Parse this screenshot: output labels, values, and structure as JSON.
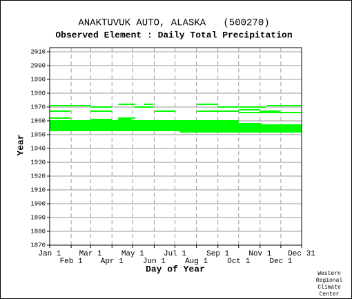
{
  "chart_data": {
    "type": "timeline",
    "title": "ANAKTUVUK AUTO, ALASKA   (500270)",
    "subtitle": "Observed Element : Daily Total Precipitation",
    "x_label": "Day of Year",
    "y_label": "Year",
    "credit": [
      "Western",
      "Regional",
      "Climate",
      "Center"
    ],
    "color": "#00ff00",
    "grid": true,
    "xlim": [
      1,
      365
    ],
    "ylim": [
      1870,
      2013
    ],
    "xticks": [
      {
        "value": 1,
        "label": "Jan 1"
      },
      {
        "value": 32,
        "label": "Feb 1"
      },
      {
        "value": 60,
        "label": "Mar 1"
      },
      {
        "value": 91,
        "label": "Apr 1"
      },
      {
        "value": 121,
        "label": "May 1"
      },
      {
        "value": 152,
        "label": "Jun 1"
      },
      {
        "value": 182,
        "label": "Jul 1"
      },
      {
        "value": 213,
        "label": "Aug 1"
      },
      {
        "value": 244,
        "label": "Sep 1"
      },
      {
        "value": 274,
        "label": "Oct 1"
      },
      {
        "value": 305,
        "label": "Nov 1"
      },
      {
        "value": 335,
        "label": "Dec 1"
      },
      {
        "value": 365,
        "label": "Dec 31"
      }
    ],
    "yticks": [
      1870,
      1880,
      1890,
      1900,
      1910,
      1920,
      1930,
      1940,
      1950,
      1960,
      1970,
      1980,
      1990,
      2000,
      2010
    ],
    "y": [
      1972,
      1972,
      1972,
      1971,
      1971,
      1970,
      1970,
      1970,
      1970,
      1968,
      1967,
      1967,
      1967,
      1967,
      1967,
      1966,
      1962,
      1962,
      1961,
      1961,
      1960,
      1960,
      1959,
      1958,
      1958,
      1957,
      1956,
      1955,
      1954,
      1953,
      1952
    ],
    "x_start": [
      100,
      137,
      214,
      1,
      315,
      60,
      123,
      244,
      276,
      274,
      1,
      60,
      153,
      214,
      305,
      274,
      1,
      100,
      60,
      100,
      1,
      31,
      1,
      1,
      274,
      1,
      1,
      1,
      1,
      1,
      189
    ],
    "x_end": [
      125,
      151,
      244,
      60,
      365,
      91,
      151,
      274,
      314,
      305,
      31,
      91,
      183,
      274,
      334,
      365,
      31,
      125,
      91,
      119,
      31,
      274,
      274,
      274,
      307,
      365,
      365,
      365,
      365,
      365,
      365
    ]
  }
}
